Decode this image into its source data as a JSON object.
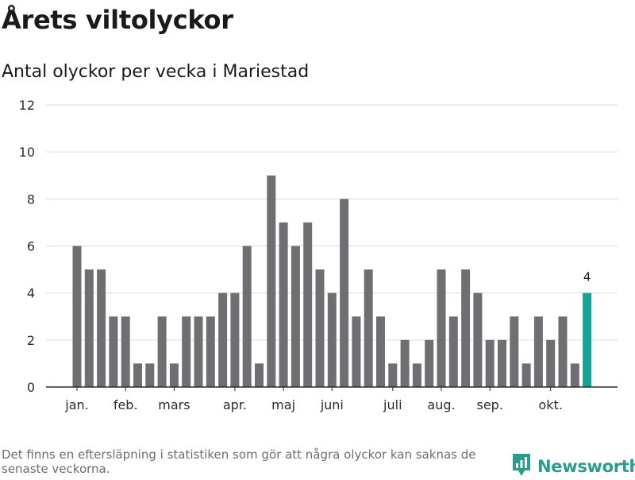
{
  "header": {
    "title": "Årets viltolyckor",
    "subtitle": "Antal olyckor per vecka i Mariestad"
  },
  "footer": {
    "note": "Det finns en eftersläpning i statistiken som gör att några olyckor kan saknas de senaste veckorna.",
    "brand": "Newsworthy"
  },
  "colors": {
    "bar": "#6f6e73",
    "highlight": "#13a399",
    "brand": "#2a9d8f"
  },
  "chart_data": {
    "type": "bar",
    "title": "Årets viltolyckor",
    "subtitle": "Antal olyckor per vecka i Mariestad",
    "xlabel": "",
    "ylabel": "",
    "ylim": [
      0,
      12
    ],
    "yticks": [
      0,
      2,
      4,
      6,
      8,
      10,
      12
    ],
    "grid": true,
    "weeks": [
      1,
      2,
      3,
      4,
      5,
      6,
      7,
      8,
      9,
      10,
      11,
      12,
      13,
      14,
      15,
      16,
      17,
      18,
      19,
      20,
      21,
      22,
      23,
      24,
      25,
      26,
      27,
      28,
      29,
      30,
      31,
      32,
      33,
      34,
      35,
      36,
      37,
      38,
      39,
      40,
      41,
      42,
      43
    ],
    "values": [
      6,
      5,
      5,
      3,
      3,
      1,
      1,
      3,
      1,
      3,
      3,
      3,
      4,
      4,
      6,
      1,
      9,
      7,
      6,
      7,
      5,
      4,
      8,
      3,
      5,
      3,
      1,
      2,
      1,
      2,
      5,
      3,
      5,
      4,
      2,
      2,
      3,
      1,
      3,
      2,
      3,
      1,
      4
    ],
    "highlight_index": 42,
    "highlight_label": "4",
    "month_labels": [
      {
        "label": "jan.",
        "week": 1
      },
      {
        "label": "feb.",
        "week": 5
      },
      {
        "label": "mars",
        "week": 9
      },
      {
        "label": "apr.",
        "week": 14
      },
      {
        "label": "maj",
        "week": 18
      },
      {
        "label": "juni",
        "week": 22
      },
      {
        "label": "juli",
        "week": 27
      },
      {
        "label": "aug.",
        "week": 31
      },
      {
        "label": "sep.",
        "week": 35
      },
      {
        "label": "okt.",
        "week": 40
      }
    ]
  }
}
